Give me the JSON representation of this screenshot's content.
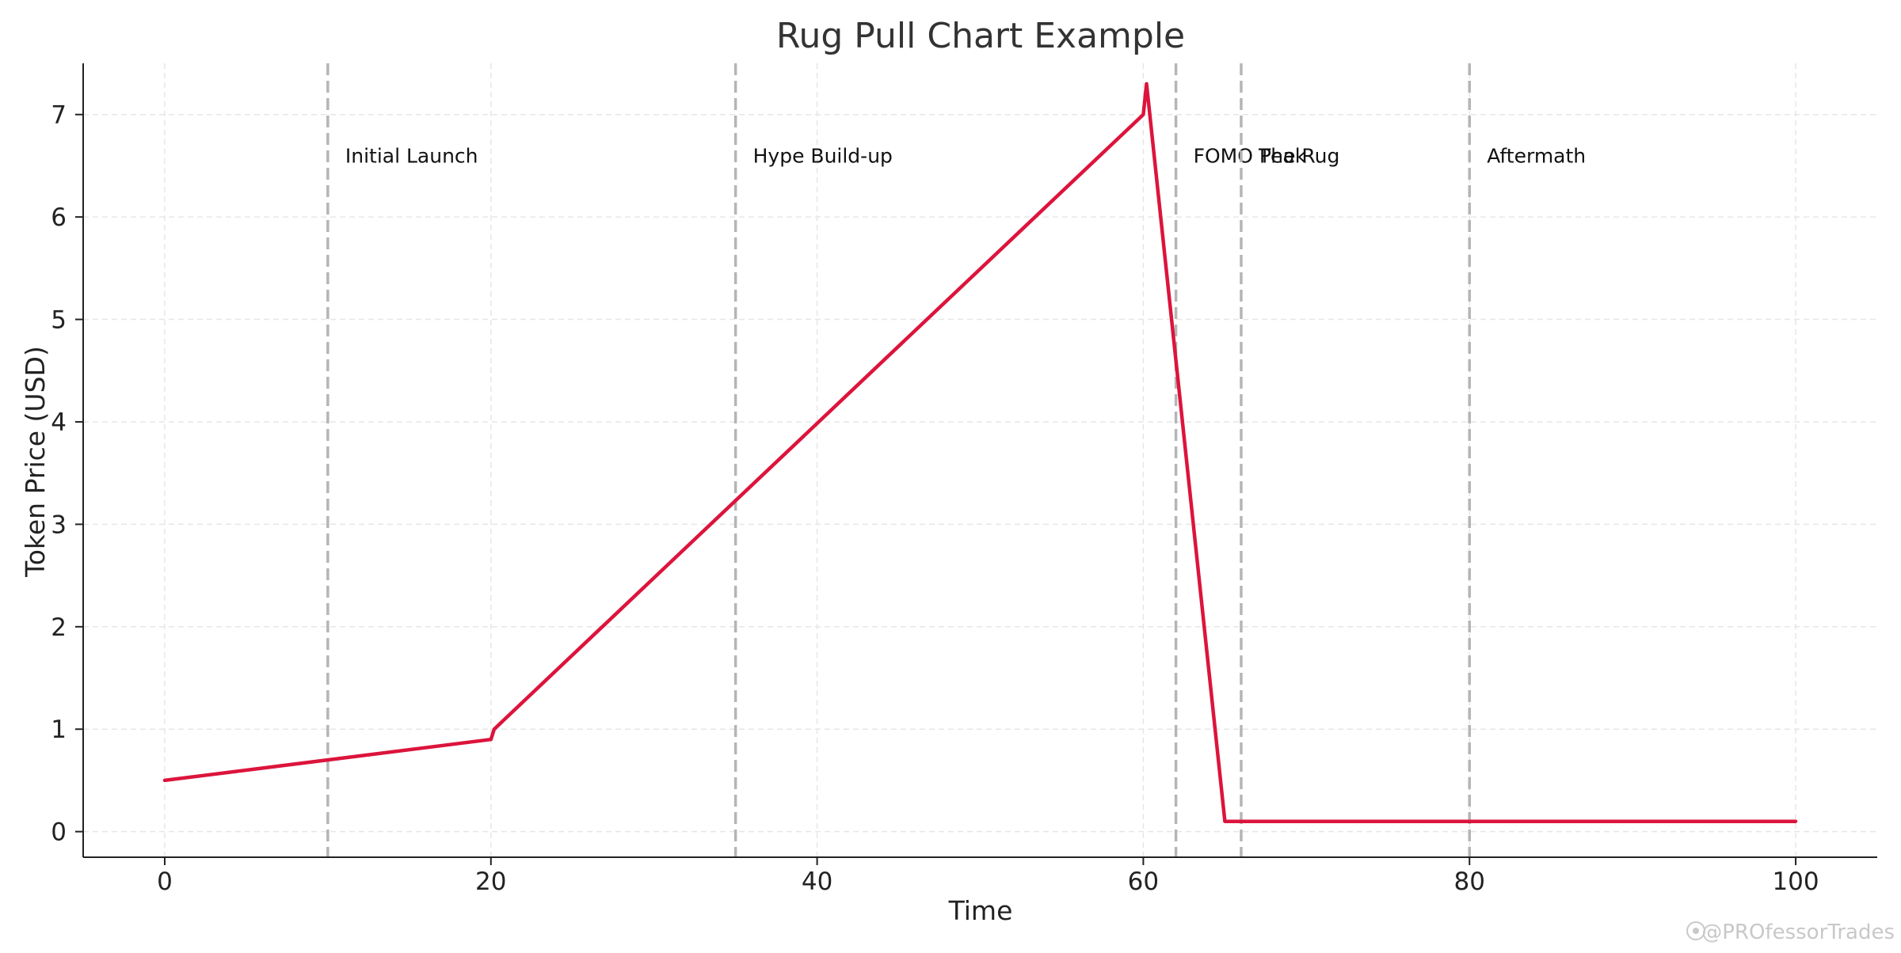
{
  "chart_data": {
    "type": "line",
    "title": "Rug Pull Chart Example",
    "xlabel": "Time",
    "ylabel": "Token Price (USD)",
    "xlim": [
      -5,
      105
    ],
    "ylim": [
      -0.25,
      7.5
    ],
    "xticks": [
      0,
      20,
      40,
      60,
      80,
      100
    ],
    "yticks": [
      0,
      1,
      2,
      3,
      4,
      5,
      6,
      7
    ],
    "grid": true,
    "series": [
      {
        "color": "#dc143c",
        "x": [
          0,
          20,
          20.2,
          60,
          60.2,
          65,
          100
        ],
        "y": [
          0.5,
          0.9,
          1.0,
          7.0,
          7.3,
          0.1,
          0.1
        ]
      }
    ],
    "phases": [
      {
        "x": 10,
        "label": "Initial Launch"
      },
      {
        "x": 35,
        "label": "Hype Build-up"
      },
      {
        "x": 62,
        "label": "FOMO Peak"
      },
      {
        "x": 66,
        "label": "The Rug"
      },
      {
        "x": 80,
        "label": "Aftermath"
      }
    ],
    "phase_label_y": 6.6
  },
  "watermark": "@PROfessorTrades"
}
